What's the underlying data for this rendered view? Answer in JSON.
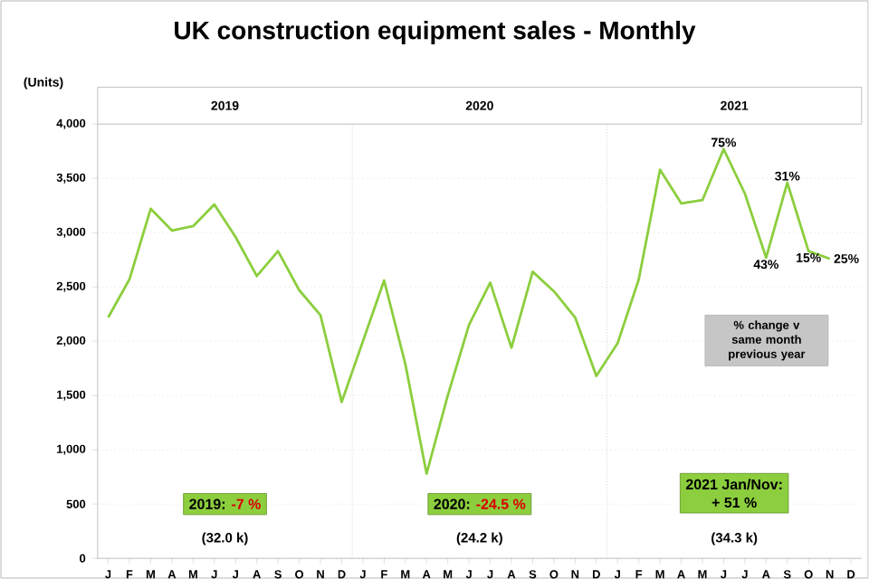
{
  "chart_data": {
    "type": "line",
    "title": "UK construction equipment sales - Monthly",
    "ylabel": "(Units)",
    "categories": [
      "J",
      "F",
      "M",
      "A",
      "M",
      "J",
      "J",
      "A",
      "S",
      "O",
      "N",
      "D",
      "J",
      "F",
      "M",
      "A",
      "M",
      "J",
      "J",
      "A",
      "S",
      "O",
      "N",
      "D",
      "J",
      "F",
      "M",
      "A",
      "M",
      "J",
      "J",
      "A",
      "S",
      "O",
      "N",
      "D"
    ],
    "series": [
      {
        "color": "#8cce3e",
        "values": [
          2220,
          2570,
          3220,
          3020,
          3060,
          3260,
          2960,
          2600,
          2830,
          2470,
          2240,
          1440,
          2000,
          2560,
          1790,
          780,
          1500,
          2150,
          2540,
          1940,
          2640,
          2460,
          2220,
          1680,
          1980,
          2570,
          3580,
          3270,
          3300,
          3770,
          3360,
          2770,
          3460,
          2830,
          2760,
          null
        ],
        "line_style": "solid"
      }
    ],
    "ylim": [
      0,
      4000
    ],
    "yticks": [
      0,
      500,
      {
        "value": 1000,
        "label": "1,000"
      },
      {
        "value": 1500,
        "label": "1,500"
      },
      {
        "value": 2000,
        "label": "2,000"
      },
      {
        "value": 2500,
        "label": "2,500"
      },
      {
        "value": 3000,
        "label": "3,000"
      },
      {
        "value": 3500,
        "label": "3,500"
      },
      {
        "value": 4000,
        "label": "4,000"
      }
    ],
    "grid": "y",
    "annotations": [
      "2019",
      "2020",
      "2021",
      "2019:",
      "-7 %",
      "(32.0 k)",
      "2020:",
      "-24.5 %",
      "(24.2 k)",
      "2021 Jan/Nov:",
      "+ 51 %",
      "(34.3 k)",
      "% change v same month previous year",
      {
        "text": "75%",
        "y": 3770
      },
      {
        "text": "43%",
        "y": 2770
      },
      {
        "text": "31%",
        "y": 3460
      },
      {
        "text": "15%",
        "y": 2830
      },
      "25%"
    ]
  }
}
